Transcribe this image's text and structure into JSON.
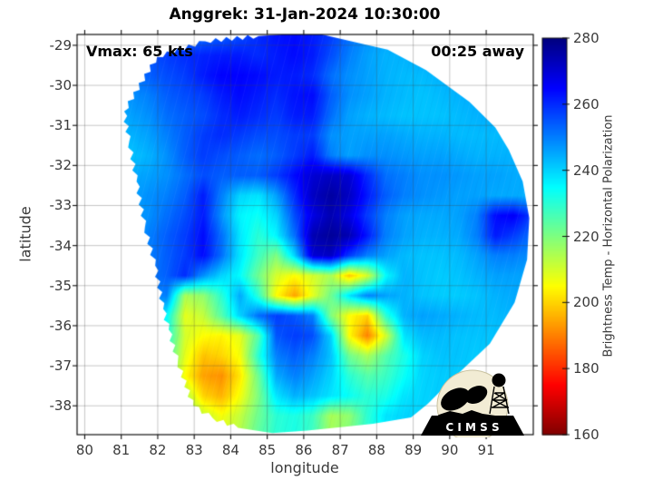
{
  "title": "Anggrek: 31-Jan-2024 10:30:00",
  "annotations": {
    "vmax": "Vmax: 65 kts",
    "eta": "00:25 away"
  },
  "axes": {
    "x": {
      "label": "longitude",
      "ticks": [
        80,
        81,
        82,
        83,
        84,
        85,
        86,
        87,
        88,
        89,
        90,
        91
      ],
      "range": [
        79.79,
        92.29
      ]
    },
    "y": {
      "label": "latitude",
      "ticks": [
        -29,
        -30,
        -31,
        -32,
        -33,
        -34,
        -35,
        -36,
        -37,
        -38
      ],
      "range": [
        -28.73,
        -38.72
      ]
    }
  },
  "colorbar": {
    "label": "Brightness Temp - Horizontal Polarization",
    "ticks": [
      280,
      260,
      240,
      220,
      200,
      180,
      160
    ],
    "range": [
      160,
      280
    ],
    "colormap": "jet-reversed"
  },
  "logo": {
    "text": "C I M S S"
  },
  "colors": {
    "background": "#ffffff",
    "spine": "#111111",
    "grid": "rgba(70,70,70,0.38)",
    "tick_label": "#3a3a3a",
    "logo_cream": "#f2ecd4"
  },
  "chart_data": {
    "type": "heatmap",
    "title": "Anggrek: 31-Jan-2024 10:30:00",
    "xlabel": "longitude",
    "ylabel": "latitude",
    "storm": {
      "name": "Anggrek",
      "datetime": "31-Jan-2024 10:30:00",
      "vmax_kts": 65,
      "time_offset": "00:25 away"
    },
    "value_label": "Brightness Temp - Horizontal Polarization",
    "value_range": [
      160,
      280
    ],
    "grid": {
      "lon_start": 80.75,
      "lon_step": 0.5,
      "lat_start": -28.75,
      "lat_step": -0.5,
      "values": [
        [
          250,
          250,
          250,
          250,
          250,
          252,
          254,
          256,
          260,
          263,
          264,
          262,
          258,
          252,
          248,
          246,
          246,
          246,
          248,
          248,
          248,
          248,
          248,
          248
        ],
        [
          250,
          252,
          255,
          258,
          260,
          261,
          262,
          262,
          260,
          262,
          264,
          262,
          256,
          250,
          246,
          244,
          244,
          245,
          246,
          247,
          248,
          248,
          248,
          248
        ],
        [
          248,
          250,
          254,
          256,
          258,
          262,
          265,
          265,
          264,
          262,
          262,
          260,
          252,
          248,
          246,
          244,
          243,
          243,
          244,
          245,
          246,
          247,
          247,
          247
        ],
        [
          246,
          248,
          250,
          254,
          256,
          258,
          262,
          264,
          262,
          260,
          263,
          264,
          254,
          248,
          246,
          244,
          243,
          242,
          243,
          244,
          245,
          246,
          246,
          246
        ],
        [
          244,
          246,
          248,
          252,
          254,
          256,
          260,
          262,
          260,
          258,
          262,
          262,
          252,
          246,
          244,
          243,
          242,
          242,
          242,
          243,
          244,
          245,
          245,
          245
        ],
        [
          243,
          244,
          246,
          250,
          254,
          258,
          260,
          258,
          256,
          256,
          258,
          258,
          248,
          246,
          246,
          246,
          245,
          244,
          244,
          243,
          243,
          243,
          243,
          243
        ],
        [
          244,
          242,
          244,
          248,
          254,
          258,
          256,
          254,
          252,
          254,
          258,
          262,
          250,
          246,
          248,
          248,
          247,
          246,
          246,
          245,
          244,
          244,
          244,
          244
        ],
        [
          245,
          245,
          246,
          248,
          252,
          256,
          254,
          254,
          254,
          258,
          264,
          270,
          272,
          270,
          260,
          252,
          250,
          248,
          248,
          247,
          246,
          246,
          245,
          245
        ],
        [
          245,
          246,
          248,
          250,
          254,
          262,
          250,
          240,
          238,
          246,
          260,
          272,
          276,
          272,
          262,
          254,
          250,
          248,
          247,
          246,
          246,
          245,
          245,
          244
        ],
        [
          246,
          246,
          248,
          252,
          256,
          262,
          248,
          236,
          234,
          240,
          256,
          268,
          274,
          268,
          258,
          250,
          246,
          245,
          245,
          246,
          250,
          264,
          266,
          258
        ],
        [
          246,
          247,
          250,
          254,
          258,
          264,
          252,
          238,
          230,
          236,
          252,
          274,
          277,
          274,
          262,
          250,
          246,
          244,
          244,
          245,
          250,
          262,
          258,
          252
        ],
        [
          246,
          247,
          250,
          254,
          258,
          264,
          252,
          238,
          228,
          220,
          240,
          270,
          272,
          258,
          250,
          246,
          243,
          242,
          242,
          243,
          246,
          250,
          250,
          248
        ],
        [
          246,
          247,
          250,
          254,
          260,
          248,
          240,
          235,
          222,
          210,
          205,
          210,
          215,
          198,
          210,
          235,
          244,
          242,
          241,
          242,
          244,
          246,
          246,
          245
        ],
        [
          246,
          247,
          249,
          250,
          215,
          218,
          230,
          245,
          230,
          205,
          194,
          208,
          222,
          238,
          250,
          246,
          244,
          242,
          241,
          241,
          242,
          244,
          245,
          244
        ],
        [
          246,
          246,
          248,
          235,
          208,
          212,
          225,
          240,
          252,
          258,
          255,
          250,
          220,
          205,
          200,
          230,
          244,
          246,
          245,
          244,
          243,
          243,
          244,
          244
        ],
        [
          245,
          245,
          247,
          232,
          210,
          205,
          204,
          208,
          225,
          255,
          258,
          256,
          240,
          205,
          190,
          210,
          238,
          243,
          243,
          242,
          242,
          242,
          243,
          243
        ],
        [
          245,
          245,
          246,
          228,
          208,
          198,
          200,
          206,
          230,
          250,
          254,
          250,
          242,
          222,
          215,
          225,
          232,
          240,
          242,
          242,
          241,
          242,
          242,
          242
        ],
        [
          244,
          244,
          245,
          222,
          205,
          194,
          192,
          202,
          222,
          245,
          250,
          246,
          240,
          230,
          225,
          228,
          234,
          240,
          241,
          241,
          241,
          241,
          242,
          242
        ],
        [
          244,
          244,
          245,
          226,
          215,
          200,
          196,
          206,
          220,
          238,
          244,
          242,
          238,
          234,
          230,
          232,
          238,
          240,
          241,
          241,
          241,
          241,
          241,
          241
        ],
        [
          243,
          243,
          244,
          230,
          220,
          212,
          206,
          212,
          222,
          230,
          232,
          228,
          215,
          218,
          230,
          238,
          240,
          240,
          240,
          240,
          240,
          240,
          240,
          240
        ],
        [
          242,
          242,
          243,
          232,
          222,
          214,
          210,
          214,
          224,
          230,
          232,
          228,
          216,
          220,
          230,
          236,
          238,
          239,
          239,
          239,
          239,
          239,
          239,
          239
        ]
      ]
    },
    "swath_polygon": [
      [
        84.76,
        -28.77
      ],
      [
        85.6,
        -28.72
      ],
      [
        86.5,
        -28.73
      ],
      [
        87.3,
        -28.9
      ],
      [
        88.3,
        -29.11
      ],
      [
        89.35,
        -29.62
      ],
      [
        90.54,
        -30.41
      ],
      [
        91.25,
        -31.05
      ],
      [
        91.62,
        -31.61
      ],
      [
        92.0,
        -32.4
      ],
      [
        92.18,
        -33.31
      ],
      [
        92.12,
        -34.35
      ],
      [
        91.78,
        -35.42
      ],
      [
        91.1,
        -36.45
      ],
      [
        90.19,
        -37.23
      ],
      [
        89.4,
        -37.95
      ],
      [
        88.94,
        -38.29
      ],
      [
        87.9,
        -38.45
      ],
      [
        87.13,
        -38.52
      ],
      [
        86.1,
        -38.62
      ],
      [
        85.14,
        -38.68
      ],
      [
        84.2,
        -38.55
      ],
      [
        83.5,
        -38.3
      ],
      [
        82.97,
        -38.0
      ],
      [
        82.55,
        -36.9
      ],
      [
        82.3,
        -36.1
      ],
      [
        82.15,
        -35.58
      ],
      [
        81.93,
        -34.5
      ],
      [
        81.65,
        -33.53
      ],
      [
        81.42,
        -32.4
      ],
      [
        81.22,
        -31.4
      ],
      [
        81.08,
        -30.65
      ],
      [
        81.98,
        -29.29
      ],
      [
        83.3,
        -28.9
      ]
    ],
    "jagged_segments": [
      21,
      33
    ]
  }
}
